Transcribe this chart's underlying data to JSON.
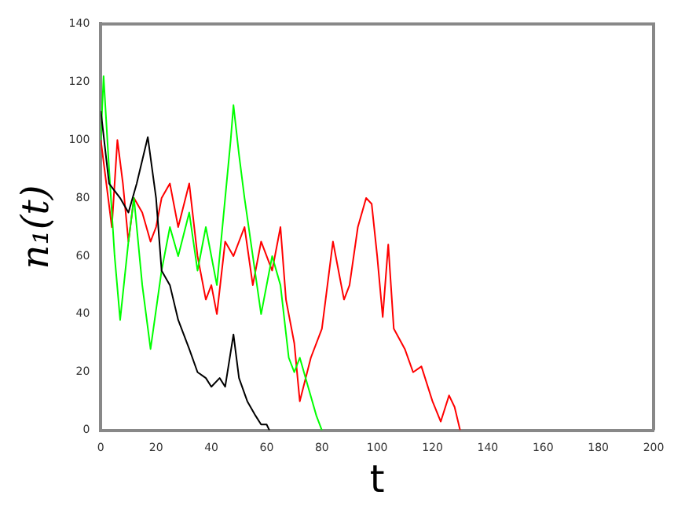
{
  "chart_data": {
    "type": "line",
    "xlabel": "t",
    "ylabel": "n₁(t)",
    "xlim": [
      0,
      200
    ],
    "ylim": [
      0,
      140
    ],
    "xticks": [
      0,
      20,
      40,
      60,
      80,
      100,
      120,
      140,
      160,
      180,
      200
    ],
    "yticks": [
      0,
      20,
      40,
      60,
      80,
      100,
      120,
      140
    ],
    "grid": false,
    "legend": false,
    "marker": "none",
    "line_style": "solid",
    "series": [
      {
        "color": "#000000",
        "x": [
          0,
          3,
          7,
          10,
          13,
          17,
          20,
          22,
          25,
          28,
          32,
          35,
          38,
          40,
          43,
          45,
          48,
          50,
          53,
          56,
          58,
          60,
          61
        ],
        "values": [
          110,
          85,
          80,
          75,
          85,
          101,
          80,
          55,
          50,
          38,
          28,
          20,
          18,
          15,
          18,
          15,
          33,
          18,
          10,
          5,
          2,
          2,
          0
        ]
      },
      {
        "color": "#00ff00",
        "x": [
          0,
          1,
          3,
          5,
          7,
          10,
          12,
          15,
          18,
          22,
          25,
          28,
          32,
          35,
          38,
          42,
          45,
          47,
          48,
          50,
          52,
          55,
          58,
          62,
          65,
          68,
          70,
          72,
          75,
          78,
          80
        ],
        "values": [
          100,
          122,
          90,
          60,
          38,
          65,
          80,
          50,
          28,
          55,
          70,
          60,
          75,
          55,
          70,
          50,
          80,
          100,
          112,
          95,
          80,
          60,
          40,
          60,
          50,
          25,
          20,
          25,
          15,
          5,
          0
        ]
      },
      {
        "color": "#ff0000",
        "x": [
          0,
          2,
          4,
          6,
          8,
          10,
          12,
          15,
          18,
          20,
          22,
          25,
          28,
          32,
          35,
          38,
          40,
          42,
          45,
          48,
          52,
          55,
          58,
          62,
          65,
          67,
          70,
          72,
          76,
          80,
          84,
          88,
          90,
          93,
          96,
          98,
          100,
          102,
          104,
          106,
          110,
          113,
          116,
          120,
          123,
          126,
          128,
          130
        ],
        "values": [
          100,
          85,
          70,
          100,
          85,
          65,
          80,
          75,
          65,
          70,
          80,
          85,
          70,
          85,
          60,
          45,
          50,
          40,
          65,
          60,
          70,
          50,
          65,
          55,
          70,
          45,
          30,
          10,
          25,
          35,
          65,
          45,
          50,
          70,
          80,
          78,
          60,
          39,
          64,
          35,
          28,
          20,
          22,
          10,
          3,
          12,
          8,
          0
        ]
      }
    ]
  }
}
